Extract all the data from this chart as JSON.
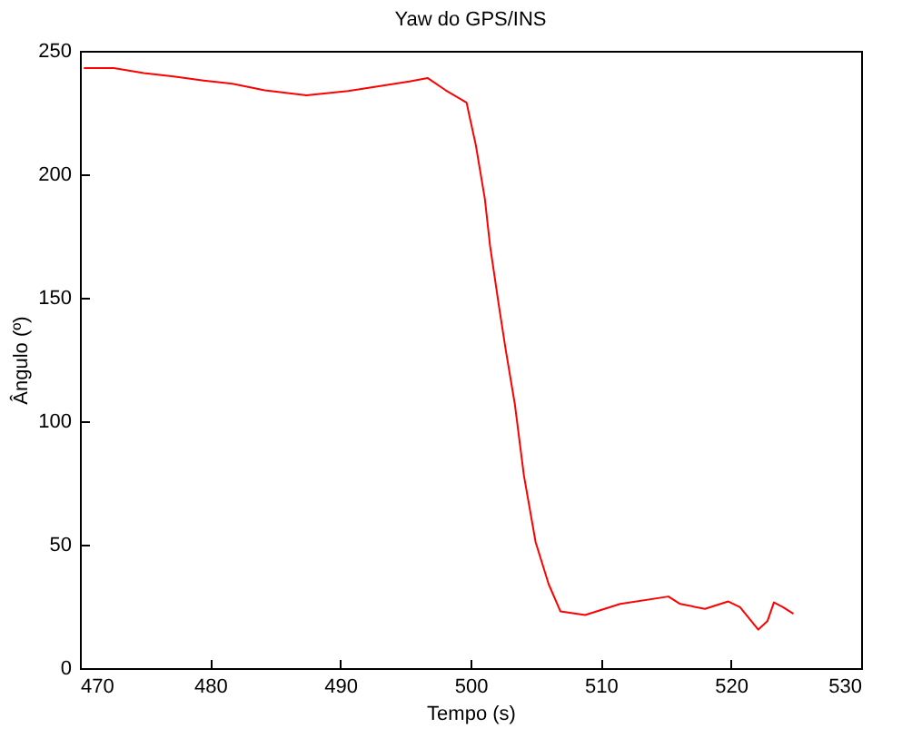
{
  "chart_data": {
    "type": "line",
    "title": "Yaw do GPS/INS",
    "xlabel": "Tempo (s)",
    "ylabel": "Ângulo (º)",
    "xlim": [
      470,
      530
    ],
    "xticks": [
      470,
      480,
      490,
      500,
      510,
      520,
      530
    ],
    "ylim": [
      0,
      250
    ],
    "yticks": [
      0,
      50,
      100,
      150,
      200,
      250
    ],
    "grid": false,
    "series": [
      {
        "color": "#ff0000",
        "x": [
          470.3,
          472.6,
          474.9,
          477.2,
          479.5,
          481.8,
          484.2,
          487.4,
          490.6,
          493.4,
          495.3,
          496.7,
          498.1,
          499.7,
          499.9,
          500.4,
          501.1,
          501.5,
          502.2,
          502.7,
          503.4,
          504.1,
          505,
          506,
          506.9,
          508.8,
          511.5,
          515.2,
          516.1,
          518,
          519.8,
          520.7,
          522.1,
          522.8,
          523.3,
          524,
          524.8
        ],
        "values": [
          243,
          243,
          241,
          239.6,
          238,
          236.6,
          234,
          232,
          233.7,
          236,
          237.6,
          239,
          234,
          229,
          224,
          212,
          190,
          171,
          146,
          129,
          107,
          78,
          51,
          34,
          23,
          21.5,
          26,
          29,
          26,
          24,
          27,
          24.7,
          15.6,
          19,
          26.6,
          24.7,
          22
        ]
      }
    ]
  }
}
